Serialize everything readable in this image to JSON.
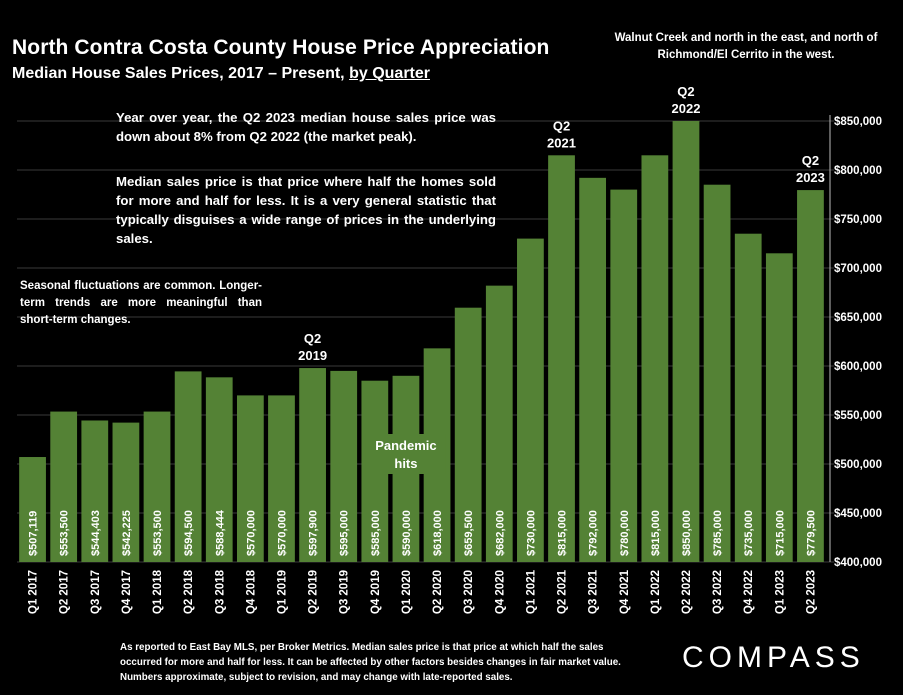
{
  "chart_data": {
    "type": "bar",
    "title": "North Contra Costa County House Price Appreciation",
    "subtitle_main": "Median House Sales Prices, 2017 – Present,",
    "subtitle_link": "by Quarter",
    "region_note": "Walnut Creek and north in the east, and north of Richmond/El Cerrito in the west.",
    "categories": [
      "Q1 2017",
      "Q2 2017",
      "Q3 2017",
      "Q4 2017",
      "Q1 2018",
      "Q2 2018",
      "Q3 2018",
      "Q4 2018",
      "Q1 2019",
      "Q2 2019",
      "Q3 2019",
      "Q4 2019",
      "Q1 2020",
      "Q2 2020",
      "Q3 2020",
      "Q4 2020",
      "Q1 2021",
      "Q2 2021",
      "Q3 2021",
      "Q4 2021",
      "Q1 2022",
      "Q2 2022",
      "Q3 2022",
      "Q4 2022",
      "Q1 2023",
      "Q2 2023"
    ],
    "values": [
      507119,
      553500,
      544403,
      542225,
      553500,
      594500,
      588444,
      570000,
      570000,
      597900,
      595000,
      585000,
      590000,
      618000,
      659500,
      682000,
      730000,
      815000,
      792000,
      780000,
      815000,
      850000,
      785000,
      735000,
      715000,
      779500
    ],
    "value_labels": [
      "$507,119",
      "$553,500",
      "$544,403",
      "$542,225",
      "$553,500",
      "$594,500",
      "$588,444",
      "$570,000",
      "$570,000",
      "$597,900",
      "$595,000",
      "$585,000",
      "$590,000",
      "$618,000",
      "$659,500",
      "$682,000",
      "$730,000",
      "$815,000",
      "$792,000",
      "$780,000",
      "$815,000",
      "$850,000",
      "$785,000",
      "$735,000",
      "$715,000",
      "$779,500"
    ],
    "ylim": [
      400000,
      850000
    ],
    "yticks": [
      "$400,000",
      "$450,000",
      "$500,000",
      "$550,000",
      "$600,000",
      "$650,000",
      "$700,000",
      "$750,000",
      "$800,000",
      "$850,000"
    ],
    "bar_color": "#548235",
    "grid": true,
    "annotations": [
      {
        "index": 9,
        "line1": "Q2",
        "line2": "2019"
      },
      {
        "index": 17,
        "line1": "Q2",
        "line2": "2021"
      },
      {
        "index": 21,
        "line1": "Q2",
        "line2": "2022"
      },
      {
        "index": 25,
        "line1": "Q2",
        "line2": "2023"
      }
    ],
    "pandemic": {
      "index": 12,
      "line1": "Pandemic",
      "line2": "hits"
    }
  },
  "notes": {
    "yoy": "Year over year, the Q2 2023 median house sales price was down about 8% from Q2 2022 (the market peak).",
    "median": "Median sales price is that price where half the homes sold for more and half for less. It is a very general statistic that typically disguises a wide range of prices in the underlying sales.",
    "seasonal": "Seasonal fluctuations are common. Longer-term trends are more meaningful than short-term changes."
  },
  "footer": "As reported to East Bay MLS, per Broker Metrics. Median sales price is that price at which half the sales occurred for more and half for less. It can be affected by other factors besides changes in fair market value. Numbers approximate, subject to revision, and may change with late-reported sales.",
  "logo": "COMPASS"
}
